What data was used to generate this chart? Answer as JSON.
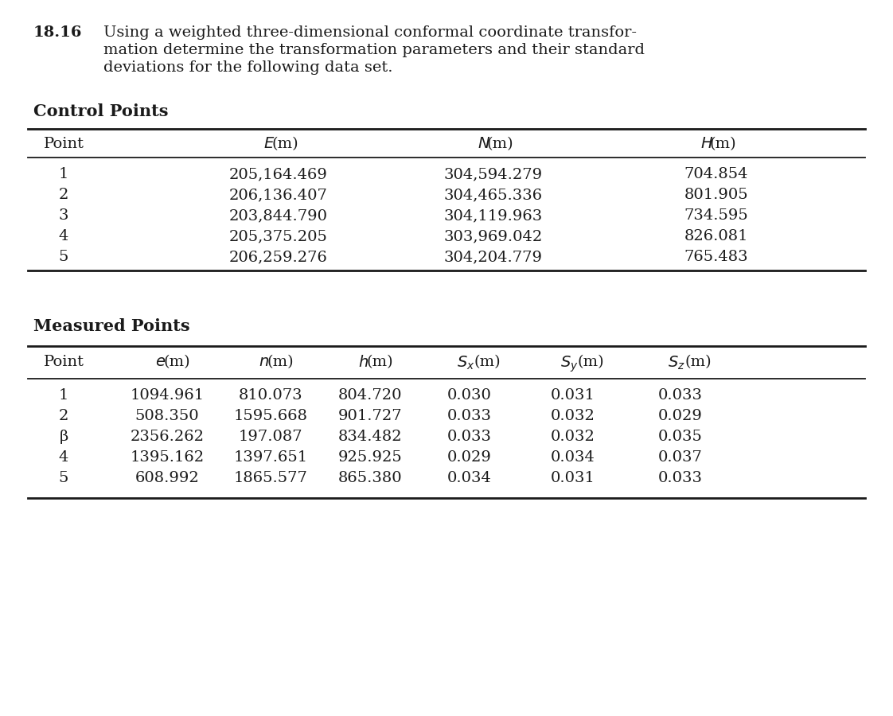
{
  "title_number": "18.16",
  "title_lines": [
    "Using a weighted three-dimensional conformal coordinate transfor-",
    "mation determine the transformation parameters and their standard",
    "deviations for the following data set."
  ],
  "control_section_title": "Control Points",
  "control_headers": [
    "Point",
    "E",
    "N",
    "H"
  ],
  "control_data": [
    [
      "1",
      "205,164.469",
      "304,594.279",
      "704.854"
    ],
    [
      "2",
      "206,136.407",
      "304,465.336",
      "801.905"
    ],
    [
      "3",
      "203,844.790",
      "304,119.963",
      "734.595"
    ],
    [
      "4",
      "205,375.205",
      "303,969.042",
      "826.081"
    ],
    [
      "5",
      "206,259.276",
      "304,204.779",
      "765.483"
    ]
  ],
  "measured_section_title": "Measured Points",
  "measured_headers": [
    "Point",
    "e",
    "n",
    "h",
    "Sx",
    "Sy",
    "Sz"
  ],
  "measured_data": [
    [
      "1",
      "1094.961",
      "810.073",
      "804.720",
      "0.030",
      "0.031",
      "0.033"
    ],
    [
      "2",
      "508.350",
      "1595.668",
      "901.727",
      "0.033",
      "0.032",
      "0.029"
    ],
    [
      "β",
      "2356.262",
      "197.087",
      "834.482",
      "0.033",
      "0.032",
      "0.035"
    ],
    [
      "4",
      "1395.162",
      "1397.651",
      "925.925",
      "0.029",
      "0.034",
      "0.037"
    ],
    [
      "5",
      "608.992",
      "1865.577",
      "865.380",
      "0.034",
      "0.031",
      "0.033"
    ]
  ],
  "bg_color": "#ffffff",
  "text_color": "#1a1a1a",
  "font_size": 14,
  "title_font_size": 14
}
